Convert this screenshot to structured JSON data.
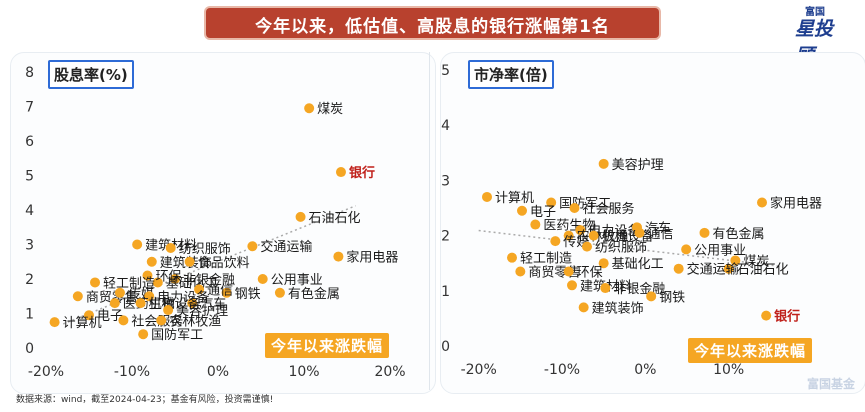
{
  "title": "今年以来，低估值、高股息的银行涨幅第1名",
  "logo": {
    "small": "富国",
    "big": "星投顾"
  },
  "footnote": "数据来源：wind，截至2024-04-23；基金有风险，投资需谨慎!",
  "watermark": "富国基金",
  "colors": {
    "title_bg": "#b8412e",
    "point": "#f5a623",
    "highlight_label": "#c0211b",
    "axis_label_box": "#2e6bd6",
    "trend": "#aaaaaa"
  },
  "chart_data": [
    {
      "type": "scatter",
      "ylabel": "股息率(%)",
      "legend": "今年以来涨跌幅",
      "xlim": [
        -0.2,
        0.2
      ],
      "ylim": [
        0,
        8
      ],
      "x_ticks": [
        "-20%",
        "-10%",
        "0%",
        "10%",
        "20%"
      ],
      "y_ticks": [
        "0",
        "1",
        "2",
        "3",
        "4",
        "5",
        "6",
        "7",
        "8"
      ],
      "highlight": "银行",
      "trendline": true,
      "points": [
        {
          "name": "煤炭",
          "x": 0.106,
          "y": 6.95
        },
        {
          "name": "银行",
          "x": 0.143,
          "y": 5.1
        },
        {
          "name": "石油石化",
          "x": 0.096,
          "y": 3.8
        },
        {
          "name": "家用电器",
          "x": 0.14,
          "y": 2.65
        },
        {
          "name": "公用事业",
          "x": 0.052,
          "y": 2.0
        },
        {
          "name": "有色金属",
          "x": 0.072,
          "y": 1.6
        },
        {
          "name": "交通运输",
          "x": 0.04,
          "y": 2.95
        },
        {
          "name": "钢铁",
          "x": 0.01,
          "y": 1.6
        },
        {
          "name": "建筑材料",
          "x": -0.094,
          "y": 3.0
        },
        {
          "name": "纺织服饰",
          "x": -0.055,
          "y": 2.9
        },
        {
          "name": "建筑装饰",
          "x": -0.077,
          "y": 2.5
        },
        {
          "name": "食品饮料",
          "x": -0.033,
          "y": 2.5
        },
        {
          "name": "非银金融",
          "x": -0.05,
          "y": 2.0
        },
        {
          "name": "基础化工",
          "x": -0.07,
          "y": 1.9
        },
        {
          "name": "通信",
          "x": -0.022,
          "y": 1.7
        },
        {
          "name": "环保",
          "x": -0.082,
          "y": 2.1
        },
        {
          "name": "轻工制造",
          "x": -0.143,
          "y": 1.9
        },
        {
          "name": "商贸零售",
          "x": -0.163,
          "y": 1.5
        },
        {
          "name": "传媒",
          "x": -0.114,
          "y": 1.6
        },
        {
          "name": "电力设备",
          "x": -0.08,
          "y": 1.5
        },
        {
          "name": "汽车",
          "x": -0.03,
          "y": 1.3
        },
        {
          "name": "医药生物",
          "x": -0.12,
          "y": 1.3
        },
        {
          "name": "机械设备",
          "x": -0.09,
          "y": 1.3
        },
        {
          "name": "美容护理",
          "x": -0.058,
          "y": 1.1
        },
        {
          "name": "电子",
          "x": -0.15,
          "y": 0.95
        },
        {
          "name": "计算机",
          "x": -0.19,
          "y": 0.75
        },
        {
          "name": "社会服务",
          "x": -0.11,
          "y": 0.8
        },
        {
          "name": "农林牧渔",
          "x": -0.066,
          "y": 0.8
        },
        {
          "name": "国防军工",
          "x": -0.087,
          "y": 0.4
        }
      ]
    },
    {
      "type": "scatter",
      "ylabel": "市净率(倍)",
      "legend": "今年以来涨跌幅",
      "xlim": [
        -0.22,
        0.2
      ],
      "ylim": [
        0,
        5
      ],
      "x_ticks": [
        "-20%",
        "-10%",
        "0%",
        "10%"
      ],
      "y_ticks": [
        "0",
        "1",
        "2",
        "3",
        "4",
        "5"
      ],
      "highlight": "银行",
      "trendline": true,
      "points": [
        {
          "name": "美容护理",
          "x": -0.05,
          "y": 3.3
        },
        {
          "name": "计算机",
          "x": -0.19,
          "y": 2.7
        },
        {
          "name": "国防军工",
          "x": -0.113,
          "y": 2.6
        },
        {
          "name": "社会服务",
          "x": -0.085,
          "y": 2.5
        },
        {
          "name": "电子",
          "x": -0.148,
          "y": 2.45
        },
        {
          "name": "医药生物",
          "x": -0.132,
          "y": 2.2
        },
        {
          "name": "电力设备",
          "x": -0.078,
          "y": 2.1
        },
        {
          "name": "汽车",
          "x": -0.01,
          "y": 2.15
        },
        {
          "name": "农林牧渔",
          "x": -0.092,
          "y": 2.0
        },
        {
          "name": "机械设备",
          "x": -0.062,
          "y": 2.0
        },
        {
          "name": "通信",
          "x": -0.007,
          "y": 2.05
        },
        {
          "name": "传媒",
          "x": -0.108,
          "y": 1.9
        },
        {
          "name": "纺织服饰",
          "x": -0.07,
          "y": 1.8
        },
        {
          "name": "家用电器",
          "x": 0.14,
          "y": 2.6
        },
        {
          "name": "有色金属",
          "x": 0.071,
          "y": 2.05
        },
        {
          "name": "公用事业",
          "x": 0.049,
          "y": 1.75
        },
        {
          "name": "煤炭",
          "x": 0.108,
          "y": 1.55
        },
        {
          "name": "石油石化",
          "x": 0.1,
          "y": 1.4
        },
        {
          "name": "轻工制造",
          "x": -0.16,
          "y": 1.6
        },
        {
          "name": "基础化工",
          "x": -0.05,
          "y": 1.5
        },
        {
          "name": "交通运输",
          "x": 0.04,
          "y": 1.4
        },
        {
          "name": "商贸零售",
          "x": -0.15,
          "y": 1.35
        },
        {
          "name": "环保",
          "x": -0.092,
          "y": 1.35
        },
        {
          "name": "建筑材料",
          "x": -0.088,
          "y": 1.1
        },
        {
          "name": "非银金融",
          "x": -0.048,
          "y": 1.05
        },
        {
          "name": "钢铁",
          "x": 0.007,
          "y": 0.9
        },
        {
          "name": "建筑装饰",
          "x": -0.074,
          "y": 0.7
        },
        {
          "name": "银行",
          "x": 0.145,
          "y": 0.55
        }
      ]
    }
  ]
}
